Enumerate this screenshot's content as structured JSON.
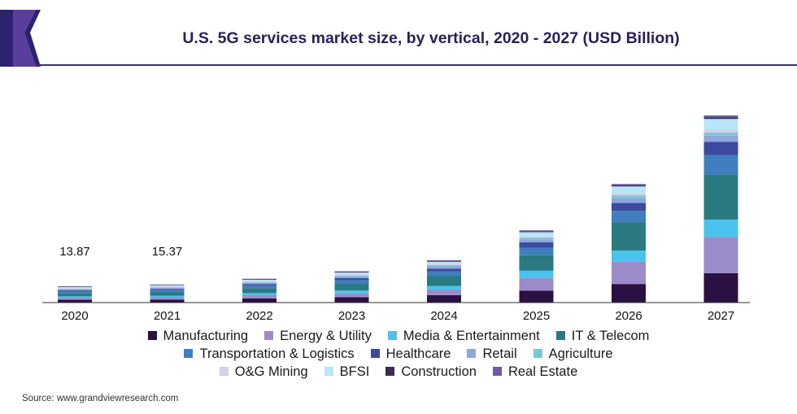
{
  "title": "U.S. 5G services market size, by vertical, 2020 - 2027 (USD Billion)",
  "source": "Source: www.grandviewresearch.com",
  "colors": {
    "brand_dark": "#2d2270",
    "brand_mid": "#5a3e9e",
    "rule": "#3b2f7a"
  },
  "chart_data": {
    "type": "bar",
    "stacked": true,
    "categories": [
      "2020",
      "2021",
      "2022",
      "2023",
      "2024",
      "2025",
      "2026",
      "2027"
    ],
    "totals_labels": [
      "13.87",
      "15.37",
      "",
      "",
      "",
      "",
      "",
      ""
    ],
    "series": [
      {
        "name": "Manufacturing",
        "color": "#2b1043",
        "values": [
          2.4,
          2.6,
          3.6,
          4.6,
          6.3,
          10.1,
          15.9,
          25.2
        ]
      },
      {
        "name": "Energy & Utility",
        "color": "#9b8cc9",
        "values": [
          1.7,
          1.9,
          2.7,
          3.5,
          4.9,
          11.0,
          19.0,
          31.0
        ]
      },
      {
        "name": "Media & Entertainment",
        "color": "#49c3ee",
        "values": [
          1.2,
          1.3,
          1.8,
          2.2,
          3.1,
          6.2,
          9.6,
          14.9
        ]
      },
      {
        "name": "IT & Telecom",
        "color": "#2a7a82",
        "values": [
          2.9,
          3.3,
          4.3,
          6.1,
          8.7,
          13.3,
          24.4,
          38.3
        ]
      },
      {
        "name": "Transportation & Logistics",
        "color": "#3f7fbf",
        "values": [
          1.4,
          1.5,
          2.0,
          2.6,
          3.6,
          6.4,
          9.6,
          17.0
        ]
      },
      {
        "name": "Healthcare",
        "color": "#3d4a9e",
        "values": [
          1.0,
          1.1,
          1.4,
          1.9,
          2.5,
          4.6,
          6.8,
          11.2
        ]
      },
      {
        "name": "Retail",
        "color": "#8fa6de",
        "values": [
          0.8,
          0.9,
          1.1,
          1.4,
          1.9,
          2.6,
          4.2,
          5.3
        ]
      },
      {
        "name": "Agriculture",
        "color": "#7fc7d2",
        "values": [
          0.5,
          0.6,
          0.7,
          0.9,
          1.1,
          1.5,
          2.4,
          2.9
        ]
      },
      {
        "name": "O&G Mining",
        "color": "#d4cfe6",
        "values": [
          0.5,
          0.6,
          0.7,
          0.9,
          1.0,
          1.3,
          2.0,
          2.6
        ]
      },
      {
        "name": "BFSI",
        "color": "#b6e6f7",
        "values": [
          0.9,
          1.0,
          1.2,
          1.6,
          1.9,
          3.3,
          5.6,
          8.9
        ]
      },
      {
        "name": "Construction",
        "color": "#3a2a55",
        "values": [
          0.4,
          0.4,
          0.5,
          0.6,
          0.7,
          0.8,
          1.0,
          1.4
        ]
      },
      {
        "name": "Real Estate",
        "color": "#6c5aa3",
        "values": [
          0.3,
          0.3,
          0.4,
          0.5,
          0.6,
          0.8,
          1.1,
          1.6
        ]
      }
    ],
    "ylim": [
      0,
      170
    ],
    "xlabel": "",
    "ylabel": "",
    "grid": false,
    "legend_position": "bottom"
  }
}
